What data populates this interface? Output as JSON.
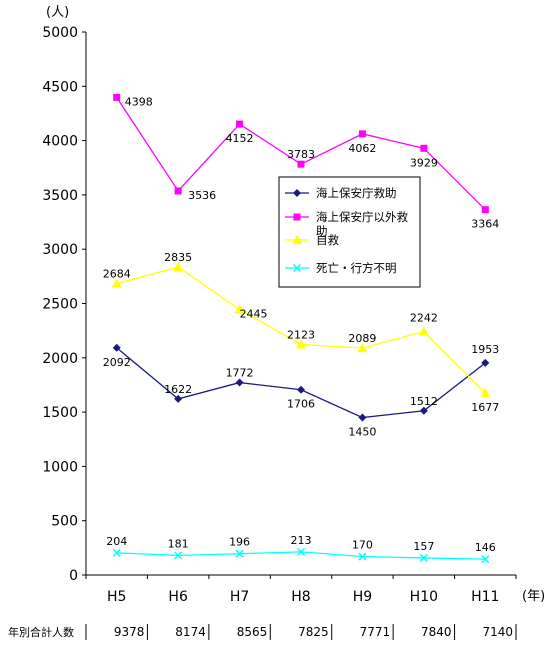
{
  "chart_data": {
    "type": "line",
    "y_unit": "(人)",
    "x_unit": "(年)",
    "categories": [
      "H5",
      "H6",
      "H7",
      "H8",
      "H9",
      "H10",
      "H11"
    ],
    "ylim": [
      0,
      5000
    ],
    "yticks": [
      0,
      500,
      1000,
      1500,
      2000,
      2500,
      3000,
      3500,
      4000,
      4500,
      5000
    ],
    "grid": false,
    "legend_position": "right-middle",
    "series": [
      {
        "name": "海上保安庁救助",
        "color": "#1a1a80",
        "marker": "diamond-filled",
        "values": [
          2092,
          1622,
          1772,
          1706,
          1450,
          1512,
          1953
        ]
      },
      {
        "name": "海上保安庁以外救助",
        "color": "#ff00ff",
        "marker": "square-filled",
        "values": [
          4398,
          3536,
          4152,
          3783,
          4062,
          3929,
          3364
        ]
      },
      {
        "name": "自救",
        "color": "#ffff00",
        "marker": "triangle-filled",
        "values": [
          2684,
          2835,
          2445,
          2123,
          2089,
          2242,
          1677
        ]
      },
      {
        "name": "死亡・行方不明",
        "color": "#00ffff",
        "marker": "x",
        "values": [
          204,
          181,
          196,
          213,
          170,
          157,
          146
        ]
      }
    ],
    "totals": {
      "label": "年別合計人数",
      "values": [
        9378,
        8174,
        8565,
        7825,
        7771,
        7840,
        7140
      ]
    }
  }
}
